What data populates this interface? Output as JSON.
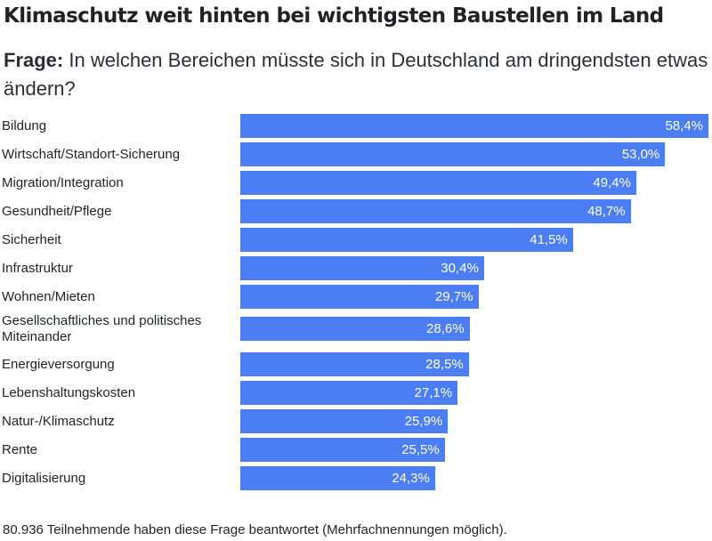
{
  "title": "Klimaschutz weit hinten bei wichtigsten Baustellen im Land",
  "subtitle": {
    "label": "Frage:",
    "text": " In welchen Bereichen müsste sich in Deutschland am dringendsten etwas ändern?"
  },
  "footnote": "80.936 Teilnehmende haben diese Frage beantwortet (Mehrfachnennungen möglich).",
  "colors": {
    "bar": "#4a7ef2",
    "value_text": "#ffffff"
  },
  "chart_data": {
    "type": "bar",
    "orientation": "horizontal",
    "categories": [
      "Bildung",
      "Wirtschaft/Standort-Sicherung",
      "Migration/Integration",
      "Gesundheit/Pflege",
      "Sicherheit",
      "Infrastruktur",
      "Wohnen/Mieten",
      "Gesellschaftliches und politisches Miteinander",
      "Energieversorgung",
      "Lebenshaltungskosten",
      "Natur-/Klimaschutz",
      "Rente",
      "Digitalisierung"
    ],
    "values": [
      58.4,
      53.0,
      49.4,
      48.7,
      41.5,
      30.4,
      29.7,
      28.6,
      28.5,
      27.1,
      25.9,
      25.5,
      24.3
    ],
    "value_labels": [
      "58,4%",
      "53,0%",
      "49,4%",
      "48,7%",
      "41,5%",
      "30,4%",
      "29,7%",
      "28,6%",
      "28,5%",
      "27,1%",
      "25,9%",
      "25,5%",
      "24,3%"
    ],
    "xlim": [
      0,
      58.4
    ],
    "grid": false,
    "legend": "none"
  }
}
